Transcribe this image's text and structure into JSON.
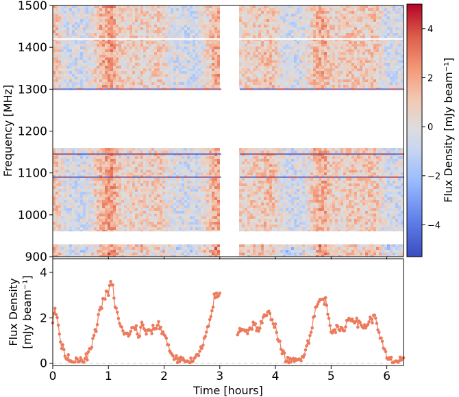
{
  "chart_data": [
    {
      "type": "heatmap",
      "title": "",
      "xlabel": "",
      "ylabel": "Frequency [MHz]",
      "ylim": [
        900,
        1500
      ],
      "yticks": [
        "900",
        "1000",
        "1100",
        "1200",
        "1300",
        "1400",
        "1500"
      ],
      "xlim": [
        0,
        6.3
      ],
      "colorbar": {
        "label": "Flux Density [mJy beam⁻¹]",
        "range": [
          -5.3,
          5.0
        ],
        "ticks": [
          "−4",
          "−2",
          "0",
          "2",
          "4"
        ],
        "tick_values": [
          -4,
          -2,
          0,
          2,
          4
        ],
        "colormap": "coolwarm",
        "colors": {
          "low": "#3b4cc0",
          "mid": "#dddddd",
          "high": "#b40426"
        }
      },
      "frequency_bands_mhz": [
        [
          900,
          930
        ],
        [
          960,
          1160
        ],
        [
          1300,
          1500
        ]
      ],
      "time_gap_hours": [
        3.0,
        3.33
      ],
      "bright_time_columns_hours": [
        1.0,
        1.1,
        2.9,
        4.85,
        4.95
      ],
      "rfi_lines_mhz": [
        1090,
        1145,
        1300
      ]
    },
    {
      "type": "scatter",
      "title": "",
      "xlabel": "Time [hours]",
      "ylabel_lines": [
        "Flux Density",
        "[mJy beam⁻¹]"
      ],
      "xlim": [
        0,
        6.3
      ],
      "ylim": [
        -0.1,
        4.6
      ],
      "xticks": [
        "0",
        "1",
        "2",
        "3",
        "4",
        "5",
        "6"
      ],
      "yticks": [
        "0",
        "2",
        "4"
      ],
      "marker_color": "#ec7a5c",
      "baseline": 0,
      "keypoints_x": [
        0.0,
        0.04,
        0.08,
        0.15,
        0.25,
        0.35,
        0.45,
        0.55,
        0.65,
        0.75,
        0.85,
        0.95,
        1.0,
        1.05,
        1.08,
        1.12,
        1.2,
        1.3,
        1.4,
        1.5,
        1.55,
        1.6,
        1.7,
        1.8,
        1.9,
        2.0,
        2.1,
        2.2,
        2.3,
        2.4,
        2.5,
        2.6,
        2.7,
        2.8,
        2.85,
        2.9,
        3.0,
        3.33,
        3.4,
        3.5,
        3.6,
        3.7,
        3.8,
        3.9,
        4.0,
        4.1,
        4.2,
        4.3,
        4.4,
        4.5,
        4.6,
        4.7,
        4.8,
        4.9,
        5.0,
        5.1,
        5.2,
        5.3,
        5.4,
        5.5,
        5.6,
        5.7,
        5.8,
        5.9,
        6.0,
        6.1,
        6.2,
        6.3
      ],
      "keypoints_y": [
        1.7,
        2.4,
        2.0,
        0.8,
        0.3,
        0.1,
        0.05,
        0.1,
        0.4,
        1.2,
        2.4,
        3.0,
        3.1,
        3.6,
        3.3,
        2.6,
        1.7,
        1.2,
        1.4,
        1.6,
        1.1,
        1.7,
        1.3,
        1.5,
        1.7,
        1.3,
        0.6,
        0.2,
        0.1,
        0.05,
        0.1,
        0.3,
        0.8,
        1.6,
        2.2,
        2.9,
        3.0,
        1.3,
        1.6,
        1.4,
        1.7,
        1.5,
        2.0,
        2.2,
        1.6,
        0.6,
        0.1,
        0.05,
        0.1,
        0.4,
        1.0,
        2.2,
        2.8,
        2.75,
        1.5,
        1.5,
        1.4,
        1.9,
        2.0,
        1.7,
        1.6,
        1.9,
        2.0,
        1.0,
        0.2,
        0.1,
        0.1,
        0.1
      ]
    }
  ]
}
